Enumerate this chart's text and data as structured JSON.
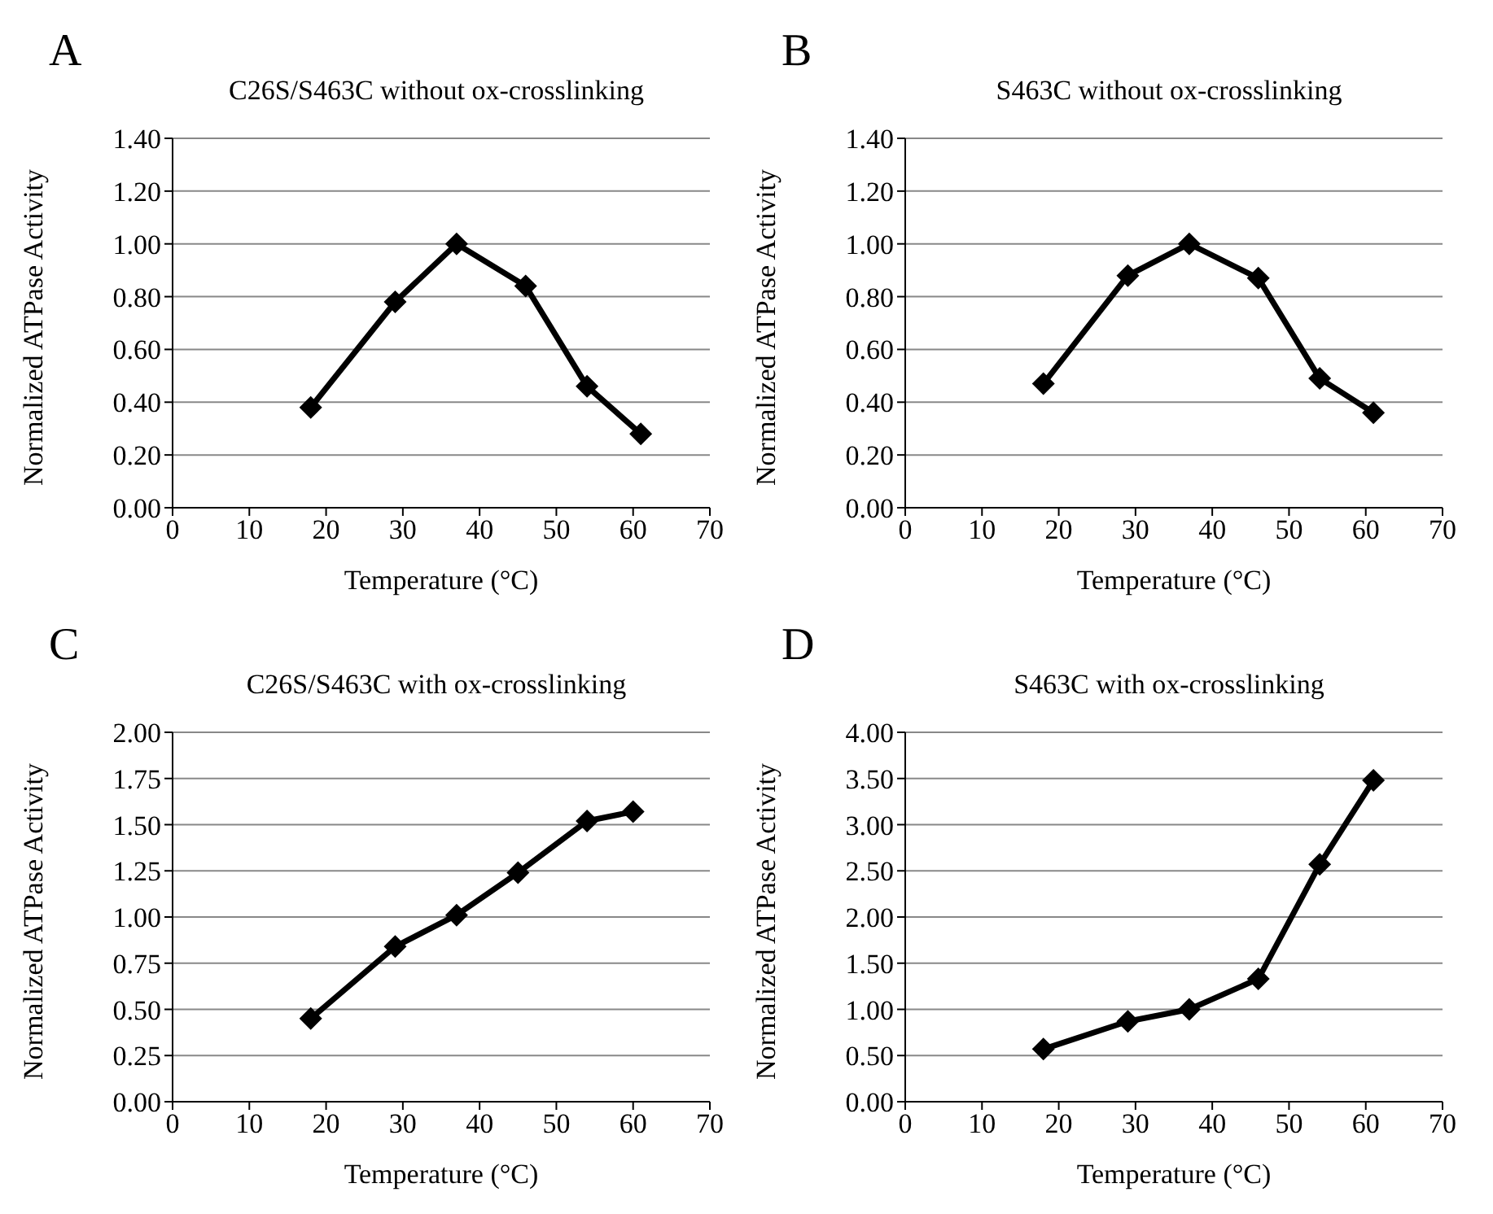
{
  "chart_data": [
    {
      "type": "line",
      "title": "C26S/S463C without ox-crosslinking",
      "xlabel": "Temperature (°C)",
      "ylabel": "Normalized ATPase Activity",
      "annotations": [
        "A"
      ],
      "x": [
        18,
        29,
        37,
        46,
        54,
        61
      ],
      "series": [
        {
          "color": "#000000",
          "values": [
            0.38,
            0.78,
            1.0,
            0.84,
            0.46,
            0.28
          ]
        }
      ],
      "xlim": [
        0,
        70
      ],
      "xticks": [
        0,
        10,
        20,
        30,
        40,
        50,
        60,
        70
      ],
      "ylim": [
        0,
        1.4
      ],
      "yticks": [
        {
          "value": 0,
          "label": "0.00"
        },
        {
          "value": 0.2,
          "label": "0.20"
        },
        {
          "value": 0.4,
          "label": "0.40"
        },
        {
          "value": 0.6,
          "label": "0.60"
        },
        {
          "value": 0.8,
          "label": "0.80"
        },
        {
          "value": 1.0,
          "label": "1.00"
        },
        {
          "value": 1.2,
          "label": "1.20"
        },
        {
          "value": 1.4,
          "label": "1.40"
        }
      ],
      "grid": "y",
      "marker": "diamond",
      "line_style": "solid"
    },
    {
      "type": "line",
      "title": "S463C without ox-crosslinking",
      "xlabel": "Temperature (°C)",
      "ylabel": "Normalized ATPase Activity",
      "annotations": [
        "B"
      ],
      "x": [
        18,
        29,
        37,
        46,
        54,
        61
      ],
      "series": [
        {
          "color": "#000000",
          "values": [
            0.47,
            0.88,
            1.0,
            0.87,
            0.49,
            0.36
          ]
        }
      ],
      "xlim": [
        0,
        70
      ],
      "xticks": [
        0,
        10,
        20,
        30,
        40,
        50,
        60,
        70
      ],
      "ylim": [
        0,
        1.4
      ],
      "yticks": [
        {
          "value": 0,
          "label": "0.00"
        },
        {
          "value": 0.2,
          "label": "0.20"
        },
        {
          "value": 0.4,
          "label": "0.40"
        },
        {
          "value": 0.6,
          "label": "0.60"
        },
        {
          "value": 0.8,
          "label": "0.80"
        },
        {
          "value": 1.0,
          "label": "1.00"
        },
        {
          "value": 1.2,
          "label": "1.20"
        },
        {
          "value": 1.4,
          "label": "1.40"
        }
      ],
      "grid": "y",
      "marker": "diamond",
      "line_style": "solid"
    },
    {
      "type": "line",
      "title": "C26S/S463C with ox-crosslinking",
      "xlabel": "Temperature (°C)",
      "ylabel": "Normalized ATPase Activity",
      "annotations": [
        "C"
      ],
      "x": [
        18,
        29,
        37,
        45,
        54,
        60
      ],
      "series": [
        {
          "color": "#000000",
          "values": [
            0.45,
            0.84,
            1.01,
            1.24,
            1.52,
            1.57
          ]
        }
      ],
      "xlim": [
        0,
        70
      ],
      "xticks": [
        0,
        10,
        20,
        30,
        40,
        50,
        60,
        70
      ],
      "ylim": [
        0,
        2
      ],
      "yticks": [
        {
          "value": 0,
          "label": "0.00"
        },
        0.25,
        {
          "value": 0.5,
          "label": "0.50"
        },
        0.75,
        {
          "value": 1.0,
          "label": "1.00"
        },
        1.25,
        {
          "value": 1.5,
          "label": "1.50"
        },
        1.75,
        {
          "value": 2.0,
          "label": "2.00"
        }
      ],
      "grid": "y",
      "marker": "diamond",
      "line_style": "solid"
    },
    {
      "type": "line",
      "title": "S463C with ox-crosslinking",
      "xlabel": "Temperature (°C)",
      "ylabel": "Normalized ATPase Activity",
      "annotations": [
        "D"
      ],
      "x": [
        18,
        29,
        37,
        46,
        54,
        61
      ],
      "series": [
        {
          "color": "#000000",
          "values": [
            0.57,
            0.87,
            1.0,
            1.33,
            2.57,
            3.48
          ]
        }
      ],
      "xlim": [
        0,
        70
      ],
      "xticks": [
        0,
        10,
        20,
        30,
        40,
        50,
        60,
        70
      ],
      "ylim": [
        0,
        4
      ],
      "yticks": [
        {
          "value": 0,
          "label": "0.00"
        },
        {
          "value": 0.5,
          "label": "0.50"
        },
        {
          "value": 1.0,
          "label": "1.00"
        },
        {
          "value": 1.5,
          "label": "1.50"
        },
        {
          "value": 2.0,
          "label": "2.00"
        },
        {
          "value": 2.5,
          "label": "2.50"
        },
        {
          "value": 3.0,
          "label": "3.00"
        },
        {
          "value": 3.5,
          "label": "3.50"
        },
        {
          "value": 4.0,
          "label": "4.00"
        }
      ],
      "grid": "y",
      "marker": "diamond",
      "line_style": "solid"
    }
  ]
}
